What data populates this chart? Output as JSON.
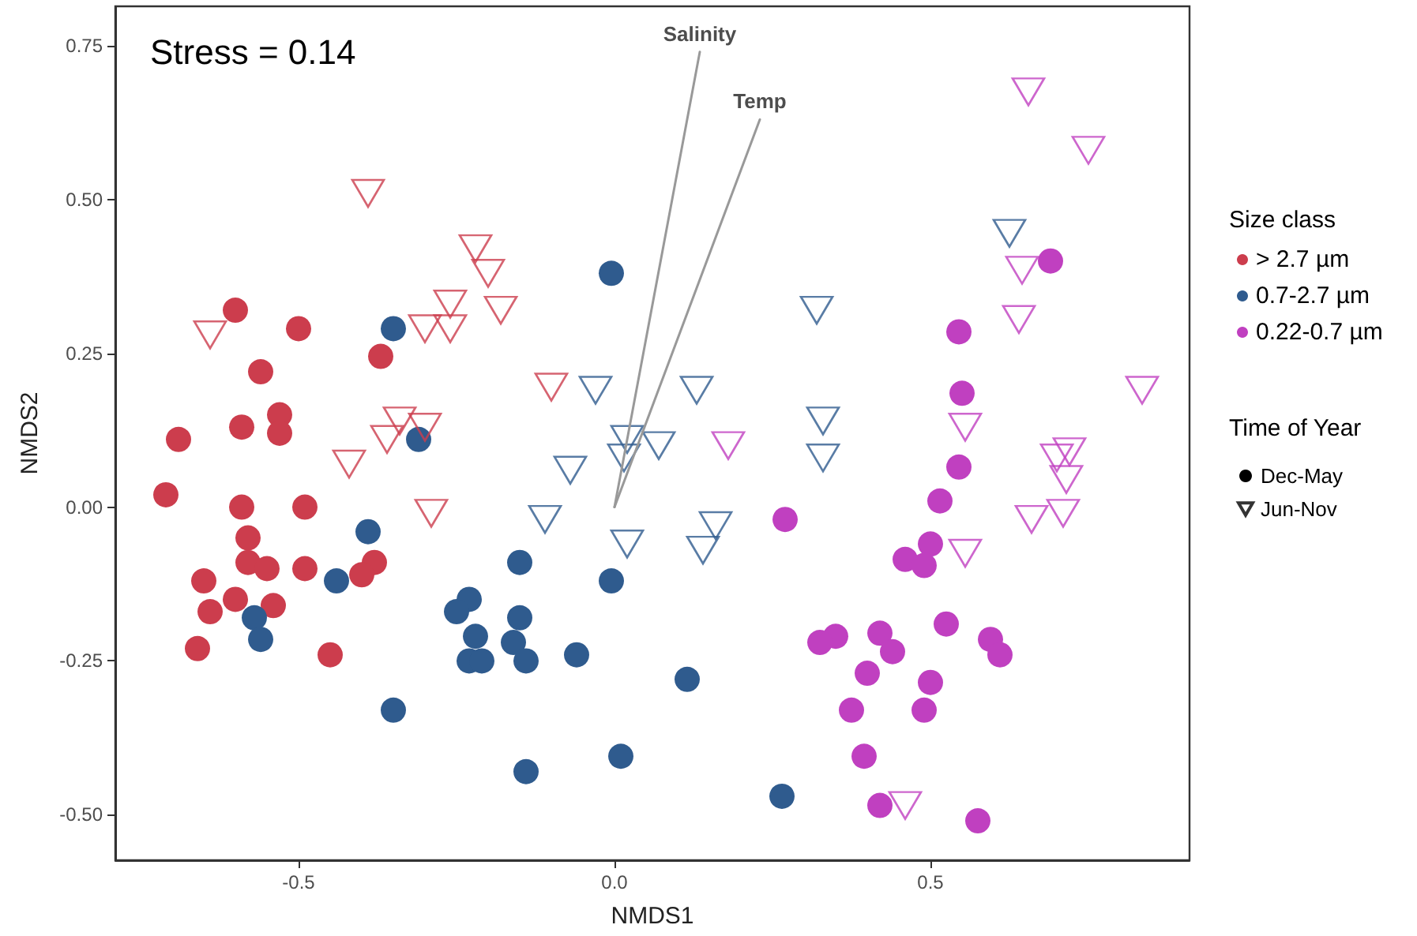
{
  "chart_data": {
    "type": "scatter",
    "xlabel": "NMDS1",
    "ylabel": "NMDS2",
    "legend_title": "Size class",
    "legend": "right",
    "grid": false,
    "annotations": [
      "Stress = 0.14",
      "Time of Year"
    ],
    "xlim": [
      -0.79,
      0.91
    ],
    "xticks": [
      -0.5,
      {
        "value": 0,
        "label": "0.0"
      },
      0.5
    ],
    "ylim": [
      -0.574,
      0.814
    ],
    "yticks": [
      {
        "value": -0.5,
        "label": "-0.50"
      },
      -0.25,
      {
        "value": 0,
        "label": "0.00"
      },
      0.25,
      {
        "value": 0.5,
        "label": "0.50"
      },
      0.75
    ],
    "series": [
      {
        "name": "> 2.7 µm",
        "color": "#cc3d4d",
        "marker": "circle",
        "x": [
          -0.6,
          -0.5,
          -0.56,
          -0.53,
          -0.53,
          -0.59,
          -0.69,
          -0.71,
          -0.59,
          -0.49,
          -0.37,
          -0.58,
          -0.58,
          -0.55,
          -0.65,
          -0.49,
          -0.6,
          -0.64,
          -0.54,
          -0.66,
          -0.45,
          -0.38,
          -0.4
        ],
        "values": [
          0.32,
          0.29,
          0.22,
          0.15,
          0.12,
          0.13,
          0.11,
          0.02,
          0.0,
          0.0,
          0.245,
          -0.05,
          -0.09,
          -0.1,
          -0.12,
          -0.1,
          -0.15,
          -0.17,
          -0.16,
          -0.23,
          -0.24,
          -0.09,
          -0.11
        ]
      },
      {
        "name": "0.7-2.7 µm",
        "color": "#2f5b8e",
        "marker": "circle",
        "x": [
          -0.35,
          -0.31,
          -0.39,
          -0.44,
          -0.57,
          -0.56,
          -0.35,
          -0.15,
          -0.23,
          -0.25,
          -0.22,
          -0.23,
          -0.21,
          -0.15,
          -0.16,
          -0.14,
          -0.14,
          -0.005,
          -0.06,
          0.115,
          0.01,
          0.265,
          -0.005
        ],
        "values": [
          0.29,
          0.11,
          -0.04,
          -0.12,
          -0.18,
          -0.215,
          -0.33,
          -0.09,
          -0.15,
          -0.17,
          -0.21,
          -0.25,
          -0.25,
          -0.18,
          -0.22,
          -0.25,
          -0.43,
          -0.12,
          -0.24,
          -0.28,
          -0.405,
          -0.47,
          0.38
        ]
      },
      {
        "name": "0.22-0.7 µm",
        "color": "#c040c0",
        "marker": "circle",
        "x": [
          0.27,
          0.69,
          0.545,
          0.55,
          0.545,
          0.515,
          0.5,
          0.46,
          0.49,
          0.525,
          0.42,
          0.44,
          0.35,
          0.325,
          0.595,
          0.61,
          0.4,
          0.5,
          0.375,
          0.49,
          0.395,
          0.42,
          0.575
        ],
        "values": [
          -0.02,
          0.4,
          0.285,
          0.185,
          0.065,
          0.01,
          -0.06,
          -0.085,
          -0.095,
          -0.19,
          -0.205,
          -0.235,
          -0.21,
          -0.22,
          -0.215,
          -0.24,
          -0.27,
          -0.285,
          -0.33,
          -0.33,
          -0.405,
          -0.485,
          -0.51
        ]
      },
      {
        "color": "#cc3d4d",
        "marker": "triangle",
        "x": [
          -0.39,
          -0.22,
          -0.2,
          -0.26,
          -0.18,
          -0.3,
          -0.26,
          -0.64,
          -0.34,
          -0.36,
          -0.3,
          -0.42,
          -0.29,
          -0.1
        ],
        "values": [
          0.51,
          0.42,
          0.38,
          0.33,
          0.32,
          0.29,
          0.29,
          0.28,
          0.14,
          0.11,
          0.13,
          0.07,
          -0.01,
          0.195
        ]
      },
      {
        "color": "#2f5b8e",
        "marker": "triangle",
        "x": [
          0.32,
          -0.03,
          0.13,
          0.33,
          0.02,
          0.07,
          0.015,
          -0.07,
          0.33,
          -0.11,
          0.02,
          0.16,
          0.14,
          0.625
        ],
        "values": [
          0.32,
          0.19,
          0.19,
          0.14,
          0.11,
          0.1,
          0.08,
          0.06,
          0.08,
          -0.02,
          -0.06,
          -0.03,
          -0.07,
          0.445
        ]
      },
      {
        "color": "#c040c0",
        "marker": "triangle",
        "x": [
          0.18,
          0.655,
          0.75,
          0.645,
          0.64,
          0.835,
          0.555,
          0.7,
          0.72,
          0.715,
          0.66,
          0.71,
          0.555,
          0.46
        ],
        "values": [
          0.1,
          0.675,
          0.58,
          0.385,
          0.305,
          0.19,
          0.13,
          0.08,
          0.09,
          0.045,
          -0.02,
          -0.01,
          -0.075,
          -0.485
        ]
      },
      {
        "name": "Salinity",
        "type": "line",
        "color": "#999999",
        "marker": "none",
        "x": [
          0,
          0.135
        ],
        "values": [
          0,
          0.74
        ]
      },
      {
        "name": "Temp",
        "type": "line",
        "color": "#999999",
        "marker": "none",
        "x": [
          0,
          0.23
        ],
        "values": [
          0,
          0.63
        ]
      },
      {
        "name": "Dec-May",
        "color": "#000000",
        "marker": "circle"
      },
      {
        "name": "Jun-Nov",
        "color": "#000000",
        "marker": "triangle"
      }
    ]
  }
}
